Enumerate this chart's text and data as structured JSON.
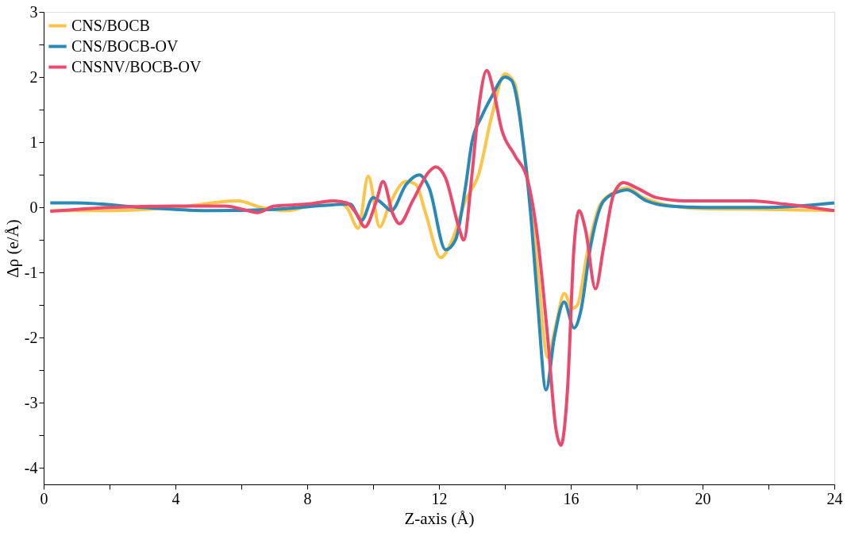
{
  "chart_data": {
    "type": "line",
    "xlabel": "Z-axis (Å)",
    "ylabel": "Δρ (e/Å)",
    "xlim": [
      0,
      24
    ],
    "ylim": [
      -4.25,
      3
    ],
    "xticks": [
      0,
      {
        "value": 2,
        "label": null
      },
      4,
      {
        "value": 6,
        "label": null
      },
      8,
      {
        "value": 10,
        "label": null
      },
      12,
      {
        "value": 14,
        "label": null
      },
      16,
      {
        "value": 18,
        "label": null
      },
      20,
      {
        "value": 22,
        "label": null
      },
      24
    ],
    "yticks": [
      -4,
      {
        "value": -3.5,
        "label": null
      },
      -3,
      {
        "value": -2.5,
        "label": null
      },
      -2,
      {
        "value": -1.5,
        "label": null
      },
      -1,
      {
        "value": -0.5,
        "label": null
      },
      0,
      {
        "value": 0.5,
        "label": null
      },
      1,
      {
        "value": 1.5,
        "label": null
      },
      2,
      {
        "value": 2.5,
        "label": null
      },
      3
    ],
    "grid": false,
    "legend": "top left",
    "marker": "none",
    "line_style": "solid",
    "series": [
      {
        "name": "CNS/BOCB",
        "color": "#fcc54a",
        "x": [
          0.2,
          2,
          4,
          5.9,
          6.6,
          7.4,
          8,
          8.8,
          9.2,
          9.55,
          9.85,
          10.2,
          10.5,
          11.0,
          11.3,
          11.6,
          12.05,
          12.4,
          12.8,
          13.2,
          13.6,
          14.0,
          14.3,
          14.6,
          14.8,
          15.0,
          15.3,
          15.55,
          15.8,
          16.05,
          16.2,
          16.5,
          16.9,
          17.4,
          17.7,
          18.2,
          18.8,
          20,
          22,
          24
        ],
        "values": [
          -0.05,
          -0.05,
          0.0,
          0.1,
          0.0,
          -0.05,
          0.02,
          0.1,
          0.0,
          -0.32,
          0.48,
          -0.3,
          0.05,
          0.4,
          0.35,
          -0.1,
          -0.77,
          -0.5,
          0.1,
          0.5,
          1.4,
          2.05,
          1.9,
          0.8,
          0.0,
          -1.0,
          -2.3,
          -1.8,
          -1.32,
          -1.55,
          -1.5,
          -0.7,
          0.05,
          0.25,
          0.3,
          0.15,
          0.05,
          -0.02,
          -0.03,
          -0.05
        ]
      },
      {
        "name": "CNS/BOCB-OV",
        "color": "#2a8ab5",
        "x": [
          0.2,
          1,
          3,
          5,
          7,
          8.5,
          9.3,
          9.65,
          10.0,
          10.3,
          10.55,
          11.0,
          11.4,
          11.7,
          12.2,
          12.5,
          12.8,
          13.0,
          13.3,
          13.6,
          14.0,
          14.2,
          14.6,
          14.8,
          15.0,
          15.25,
          15.5,
          15.8,
          16.1,
          16.3,
          16.6,
          17.0,
          17.5,
          17.7,
          18.3,
          19,
          20,
          22,
          24
        ],
        "values": [
          0.07,
          0.07,
          0.0,
          -0.05,
          -0.03,
          0.03,
          0.05,
          -0.2,
          0.15,
          0.05,
          -0.05,
          0.35,
          0.5,
          0.3,
          -0.65,
          -0.5,
          0.3,
          1.0,
          1.4,
          1.7,
          2.0,
          1.95,
          0.8,
          -0.2,
          -1.5,
          -2.8,
          -2.0,
          -1.45,
          -1.85,
          -1.6,
          -0.6,
          0.1,
          0.25,
          0.27,
          0.1,
          0.02,
          0.0,
          0.0,
          0.07
        ]
      },
      {
        "name": "CNSNV/BOCB-OV",
        "color": "#ea4a6e",
        "x": [
          0.2,
          2,
          4,
          5.5,
          6.2,
          6.5,
          7,
          8,
          8.8,
          9.2,
          9.5,
          9.75,
          10.1,
          10.3,
          10.6,
          10.8,
          11.2,
          11.7,
          11.9,
          12.2,
          12.6,
          12.75,
          13.0,
          13.2,
          13.45,
          13.65,
          13.9,
          14.3,
          14.7,
          15.0,
          15.3,
          15.55,
          15.7,
          15.9,
          16.1,
          16.25,
          16.45,
          16.75,
          17.0,
          17.3,
          17.6,
          18.0,
          18.6,
          19.5,
          21.5,
          22.5,
          24
        ],
        "values": [
          -0.06,
          0.0,
          0.02,
          0.02,
          -0.05,
          -0.08,
          0.02,
          0.05,
          0.1,
          0.07,
          -0.1,
          -0.3,
          0.1,
          0.4,
          -0.1,
          -0.25,
          0.1,
          0.55,
          0.62,
          0.45,
          -0.3,
          -0.5,
          0.5,
          1.5,
          2.1,
          1.8,
          1.2,
          0.8,
          0.4,
          -0.5,
          -2.0,
          -3.4,
          -3.65,
          -2.8,
          -0.6,
          -0.05,
          -0.35,
          -1.25,
          -0.6,
          0.2,
          0.38,
          0.3,
          0.15,
          0.1,
          0.1,
          0.05,
          -0.05
        ]
      }
    ]
  }
}
